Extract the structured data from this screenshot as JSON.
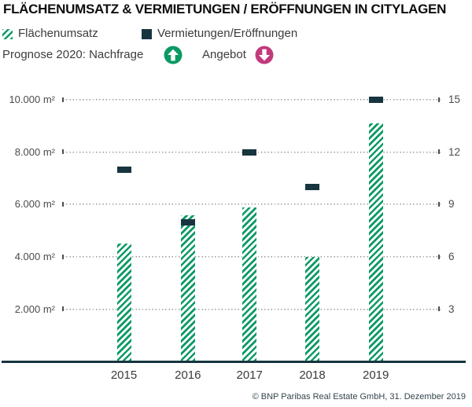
{
  "title": "FLÄCHENUMSATZ & VERMIETUNGEN / ERÖFFNUNGEN IN CITYLAGEN",
  "legend": {
    "flaechenumsatz": "Flächenumsatz",
    "vermietungen": "Vermietungen/Eröffnungen"
  },
  "prognose": {
    "nachfrage_label": "Prognose 2020: Nachfrage",
    "nachfrage_icon": "arrow-up-circle",
    "angebot_label": "Angebot",
    "angebot_icon": "arrow-down-circle"
  },
  "footer": "© BNP Paribas Real Estate GmbH, 31. Dezember 2019",
  "colors": {
    "green": "#0B9A64",
    "dark_teal": "#17353F",
    "magenta": "#C23A7C",
    "grid_dots": "#9B9B9B",
    "axis_text": "#4C4C4C"
  },
  "chart_data": {
    "type": "bar",
    "title": "Flächenumsatz & Vermietungen / Eröffnungen in Citylagen",
    "categories": [
      "2015",
      "2016",
      "2017",
      "2018",
      "2019"
    ],
    "series": [
      {
        "name": "Flächenumsatz",
        "type": "bar",
        "axis": "left",
        "unit": "m²",
        "style": "green-diagonal-hatch",
        "values": [
          4500,
          5600,
          5900,
          4000,
          9100
        ]
      },
      {
        "name": "Vermietungen/Eröffnungen",
        "type": "marker",
        "axis": "right",
        "unit": "count",
        "style": "dark-teal-dash",
        "values": [
          11,
          8,
          12,
          10,
          15
        ]
      }
    ],
    "left_axis": {
      "labels": [
        "10.000 m²",
        "8.000 m²",
        "6.000 m²",
        "4.000 m²",
        "2.000 m²"
      ],
      "values": [
        10000,
        8000,
        6000,
        4000,
        2000
      ],
      "min": 0,
      "max": 10000
    },
    "right_axis": {
      "labels": [
        "15",
        "12",
        "9",
        "6",
        "3"
      ],
      "values": [
        15,
        12,
        9,
        6,
        3
      ],
      "min": 0,
      "max": 15
    },
    "grid": "dotted-horizontal",
    "legend_position": "top-left"
  }
}
